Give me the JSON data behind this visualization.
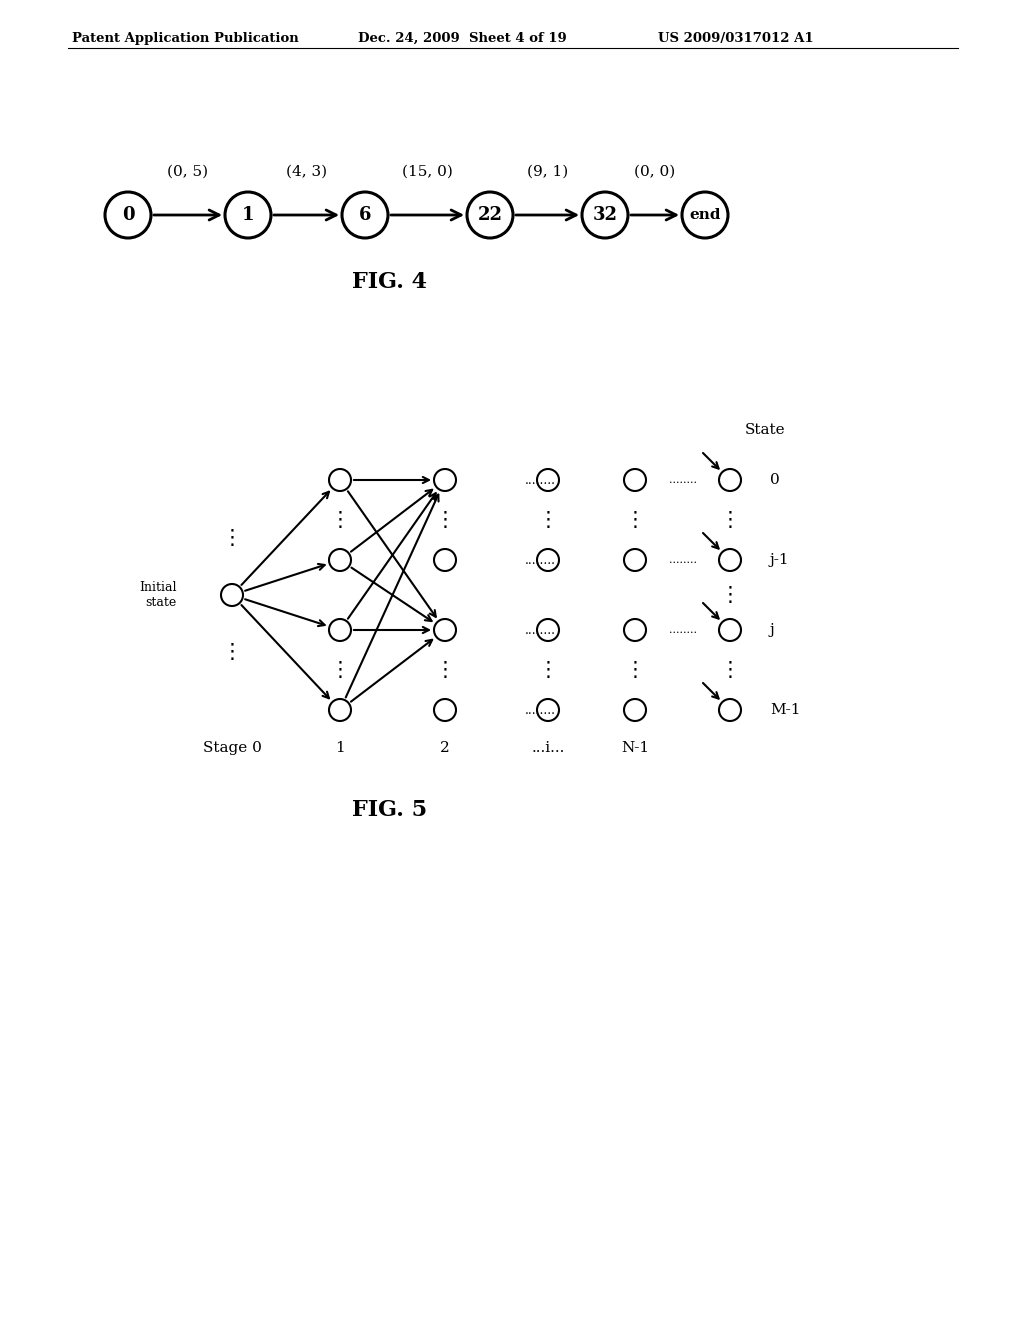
{
  "header_left": "Patent Application Publication",
  "header_mid": "Dec. 24, 2009  Sheet 4 of 19",
  "header_right": "US 2009/0317012 A1",
  "fig4_nodes": [
    "0",
    "1",
    "6",
    "22",
    "32",
    "end"
  ],
  "fig4_labels": [
    "(0, 5)",
    "(4, 3)",
    "(15, 0)",
    "(9, 1)",
    "(0, 0)"
  ],
  "fig4_caption": "FIG. 4",
  "fig5_caption": "FIG. 5",
  "fig5_stage_labels": [
    "Stage 0",
    "1",
    "2",
    "...i...",
    "N-1"
  ],
  "fig5_state_label": "State",
  "fig5_state_indices": [
    "0",
    "j-1",
    "j",
    "M-1"
  ],
  "fig5_initial_label": "Initial\nstate",
  "background_color": "#ffffff",
  "text_color": "#000000"
}
